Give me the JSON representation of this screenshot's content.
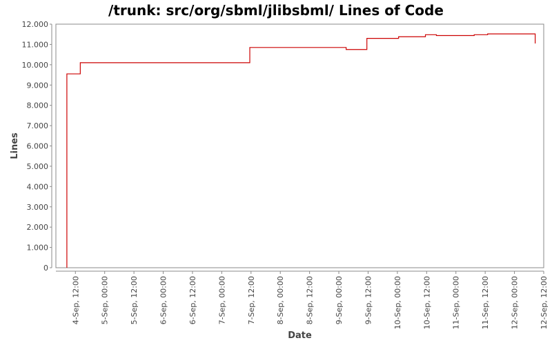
{
  "chart_data": {
    "type": "line",
    "title": "/trunk: src/org/sbml/jlibsbml/ Lines of Code",
    "xlabel": "Date",
    "ylabel": "Lines",
    "ylim": [
      0,
      12000
    ],
    "xlim": [
      "2008-09-04T04:00",
      "2008-09-12T12:00"
    ],
    "yticks": [
      {
        "value": 0,
        "label": "0"
      },
      {
        "value": 1000,
        "label": "1.000"
      },
      {
        "value": 2000,
        "label": "2.000"
      },
      {
        "value": 3000,
        "label": "3.000"
      },
      {
        "value": 4000,
        "label": "4.000"
      },
      {
        "value": 5000,
        "label": "5.000"
      },
      {
        "value": 6000,
        "label": "6.000"
      },
      {
        "value": 7000,
        "label": "7.000"
      },
      {
        "value": 8000,
        "label": "8.000"
      },
      {
        "value": 9000,
        "label": "9.000"
      },
      {
        "value": 10000,
        "label": "10.000"
      },
      {
        "value": 11000,
        "label": "11.000"
      },
      {
        "value": 12000,
        "label": "12.000"
      }
    ],
    "xticks": [
      {
        "value": "2008-09-04T12:00",
        "label": "4-Sep, 12:00"
      },
      {
        "value": "2008-09-05T00:00",
        "label": "5-Sep, 00:00"
      },
      {
        "value": "2008-09-05T12:00",
        "label": "5-Sep, 12:00"
      },
      {
        "value": "2008-09-06T00:00",
        "label": "6-Sep, 00:00"
      },
      {
        "value": "2008-09-06T12:00",
        "label": "6-Sep, 12:00"
      },
      {
        "value": "2008-09-07T00:00",
        "label": "7-Sep, 00:00"
      },
      {
        "value": "2008-09-07T12:00",
        "label": "7-Sep, 12:00"
      },
      {
        "value": "2008-09-08T00:00",
        "label": "8-Sep, 00:00"
      },
      {
        "value": "2008-09-08T12:00",
        "label": "8-Sep, 12:00"
      },
      {
        "value": "2008-09-09T00:00",
        "label": "9-Sep, 00:00"
      },
      {
        "value": "2008-09-09T12:00",
        "label": "9-Sep, 12:00"
      },
      {
        "value": "2008-09-10T00:00",
        "label": "10-Sep, 00:00"
      },
      {
        "value": "2008-09-10T12:00",
        "label": "10-Sep, 12:00"
      },
      {
        "value": "2008-09-11T00:00",
        "label": "11-Sep, 00:00"
      },
      {
        "value": "2008-09-11T12:00",
        "label": "11-Sep, 12:00"
      },
      {
        "value": "2008-09-12T00:00",
        "label": "12-Sep, 00:00"
      },
      {
        "value": "2008-09-12T12:00",
        "label": "12-Sep, 12:00"
      }
    ],
    "step": true,
    "grid": false,
    "series": [
      {
        "color": "#cc0000",
        "points": [
          {
            "x": "2008-09-04T08:30",
            "y": 0
          },
          {
            "x": "2008-09-04T08:30",
            "y": 9550
          },
          {
            "x": "2008-09-04T14:00",
            "y": 10100
          },
          {
            "x": "2008-09-07T11:30",
            "y": 10850
          },
          {
            "x": "2008-09-09T03:00",
            "y": 10750
          },
          {
            "x": "2008-09-09T11:30",
            "y": 11300
          },
          {
            "x": "2008-09-10T00:30",
            "y": 11380
          },
          {
            "x": "2008-09-10T11:30",
            "y": 11480
          },
          {
            "x": "2008-09-10T16:00",
            "y": 11440
          },
          {
            "x": "2008-09-11T07:30",
            "y": 11480
          },
          {
            "x": "2008-09-11T13:00",
            "y": 11520
          },
          {
            "x": "2008-09-12T08:30",
            "y": 11050
          }
        ]
      }
    ]
  }
}
